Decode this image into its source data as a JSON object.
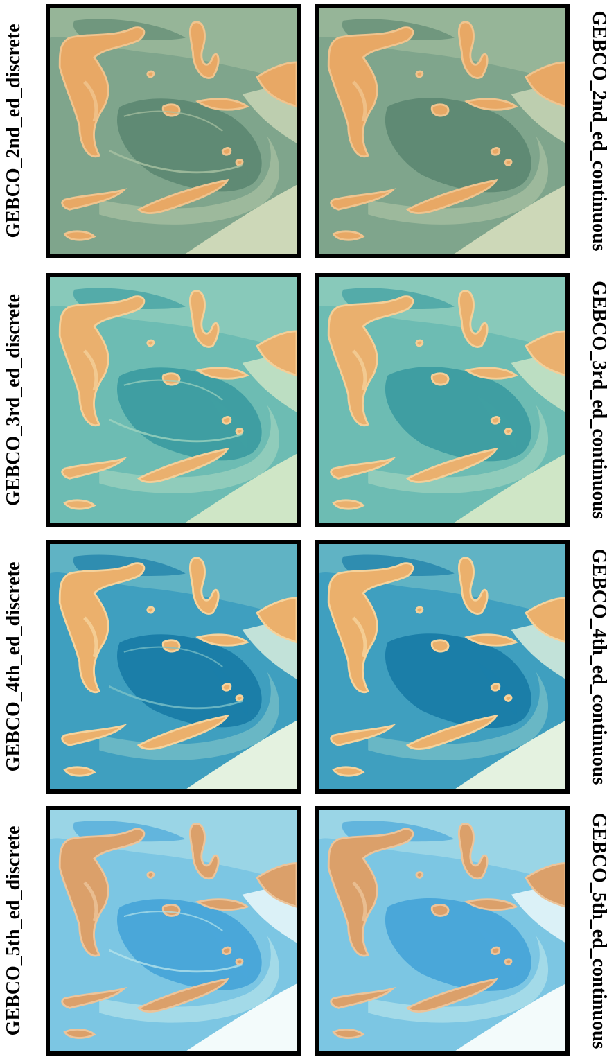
{
  "panels": [
    {
      "left_label": "GEBCO_2nd_ed_discrete",
      "right_label": "GEBCO_2nd_ed_continuous",
      "colors": {
        "deep": "#5f8a74",
        "mid": "#7fa58c",
        "shallow": "#a9c2a3",
        "edge": "#cdd8b8",
        "land": "#e8a865",
        "land_light": "#f0c48e"
      }
    },
    {
      "left_label": "GEBCO_3rd_ed_discrete",
      "right_label": "GEBCO_3rd_ed_continuous",
      "colors": {
        "deep": "#3f9ea2",
        "mid": "#6dbcb3",
        "shallow": "#9fd3bf",
        "edge": "#cfe6c6",
        "land": "#eab06e",
        "land_light": "#f4cf98"
      }
    },
    {
      "left_label": "GEBCO_4th_ed_discrete",
      "right_label": "GEBCO_4th_ed_continuous",
      "colors": {
        "deep": "#1b7ea8",
        "mid": "#3f9fbf",
        "shallow": "#7cc2c8",
        "edge": "#e4f2e0",
        "land": "#ebb06c",
        "land_light": "#f6d39c"
      }
    },
    {
      "left_label": "GEBCO_5th_ed_discrete",
      "right_label": "GEBCO_5th_ed_continuous",
      "colors": {
        "deep": "#4aa7d9",
        "mid": "#7cc6e3",
        "shallow": "#b3e2ea",
        "edge": "#f3fbfb",
        "land": "#dba06a",
        "land_light": "#ecc49a"
      }
    }
  ]
}
